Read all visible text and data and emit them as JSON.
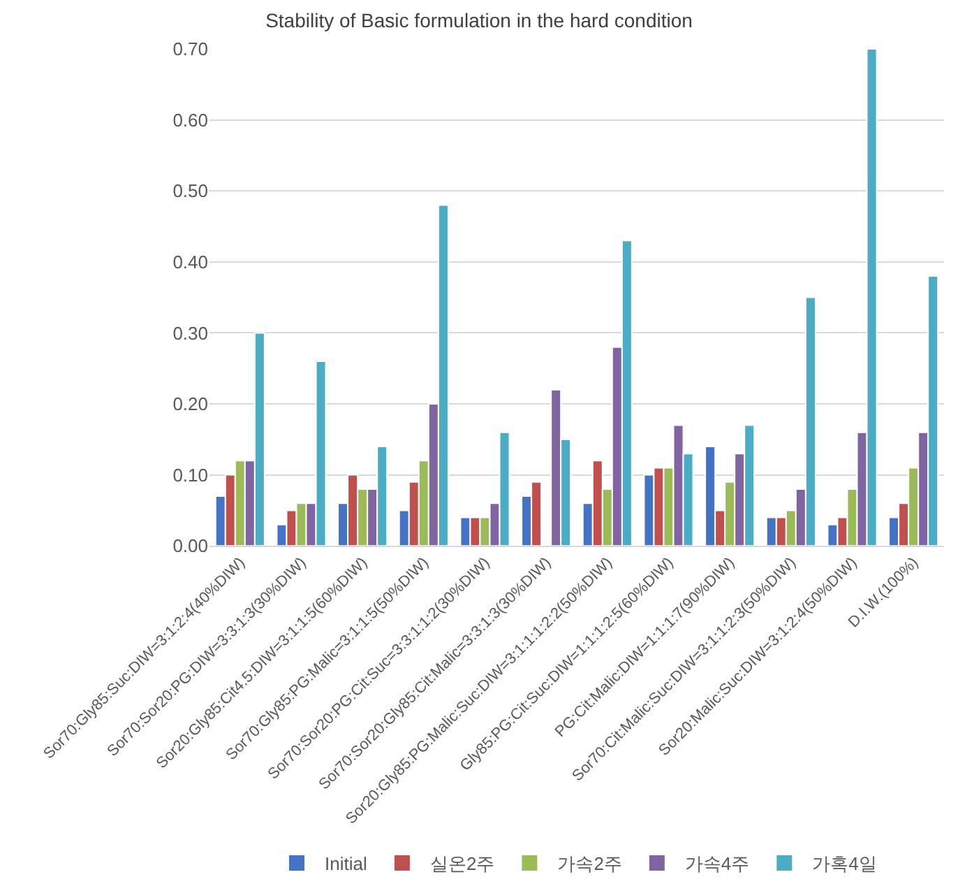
{
  "chart_data": {
    "type": "bar",
    "title": "Stability of Basic formulation in the hard condition",
    "categories": [
      "Sor70:Gly85:Suc:DIW=3:1:2:4(40%DIW)",
      "Sor70:Sor20:PG:DIW=3:3:1:3(30%DIW)",
      "Sor20:Gly85:Cit4.5:DIW=3:1:1:5(60%DIW)",
      "Sor70:Gly85:PG:Malic=3:1:1:5(50%DIW)",
      "Sor70:Sor20:PG:Cit:Suc=3:3:1:1:2(30%DIW)",
      "Sor70:Sor20:Gly85:Cit:Malic=3:3:1:3(30%DIW)",
      "Sor20:Gly85:PG:Malic:Suc:DIW=3:1:1:1:2:2(50%DIW)",
      "Gly85:PG:Cit:Suc:DIW=1:1:1:2:5(60%DIW)",
      "PG:Cit:Malic:DIW=1:1:1:7(90%DIW)",
      "Sor70:Cit:Malic:Suc:DIW=3:1:1:2:3(50%DIW)",
      "Sor20:Malic:Suc:DIW=3:1:2:4(50%DIW)",
      "D.I.W.(100%)"
    ],
    "series": [
      {
        "name": "Initial",
        "color": "#4472c4",
        "values": [
          0.07,
          0.03,
          0.06,
          0.05,
          0.04,
          0.07,
          0.06,
          0.1,
          0.14,
          0.04,
          0.03,
          0.04
        ]
      },
      {
        "name": "실온2주",
        "color": "#c0504d",
        "values": [
          0.1,
          0.05,
          0.1,
          0.09,
          0.04,
          0.09,
          0.12,
          0.11,
          0.05,
          0.04,
          0.04,
          0.06
        ]
      },
      {
        "name": "가속2주",
        "color": "#9bbb59",
        "values": [
          0.12,
          0.06,
          0.08,
          0.12,
          0.04,
          null,
          0.08,
          0.11,
          0.09,
          0.05,
          0.08,
          0.11
        ]
      },
      {
        "name": "가속4주",
        "color": "#8064a2",
        "values": [
          0.12,
          0.06,
          0.08,
          0.2,
          0.06,
          0.22,
          0.28,
          0.17,
          0.13,
          0.08,
          0.16,
          0.16
        ]
      },
      {
        "name": "가혹4일",
        "color": "#4bacc6",
        "values": [
          0.3,
          0.26,
          0.14,
          0.48,
          0.16,
          0.15,
          0.43,
          0.13,
          0.17,
          0.35,
          0.7,
          0.38
        ]
      }
    ],
    "ylim": [
      0,
      0.7
    ],
    "yticks": [
      {
        "value": 0,
        "label": "0.00"
      },
      {
        "value": 0.1,
        "label": "0.10"
      },
      {
        "value": 0.2,
        "label": "0.20"
      },
      {
        "value": 0.3,
        "label": "0.30"
      },
      {
        "value": 0.4,
        "label": "0.40"
      },
      {
        "value": 0.5,
        "label": "0.50"
      },
      {
        "value": 0.6,
        "label": "0.60"
      },
      {
        "value": 0.7,
        "label": "0.70"
      }
    ],
    "grid": "y",
    "legend": "bottom"
  }
}
